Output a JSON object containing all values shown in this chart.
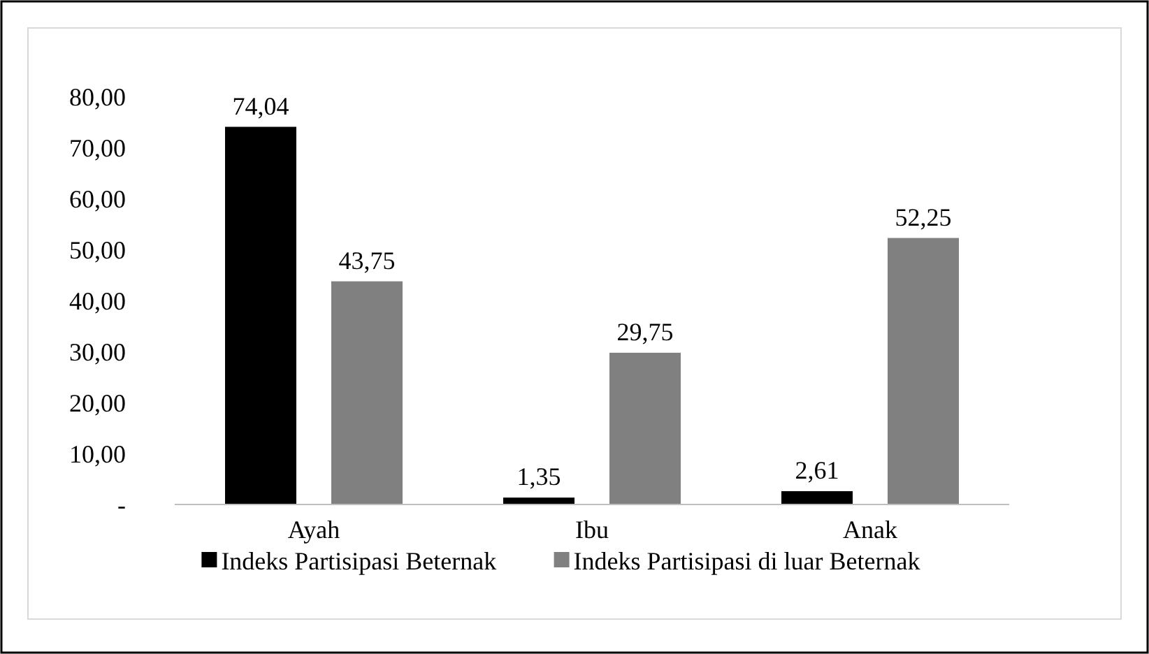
{
  "chart_data": {
    "type": "bar",
    "categories": [
      "Ayah",
      "Ibu",
      "Anak"
    ],
    "series": [
      {
        "name": "Indeks Partisipasi Beternak",
        "color": "#000000",
        "values": [
          74.04,
          1.35,
          2.61
        ],
        "value_labels": [
          "74,04",
          "1,35",
          "2,61"
        ]
      },
      {
        "name": "Indeks Partisipasi di luar Beternak",
        "color": "#808080",
        "values": [
          43.75,
          29.75,
          52.25
        ],
        "value_labels": [
          "43,75",
          "29,75",
          "52,25"
        ]
      }
    ],
    "ylim": [
      0,
      80
    ],
    "yticks": [
      {
        "value": 0,
        "label": "-"
      },
      {
        "value": 10,
        "label": "10,00"
      },
      {
        "value": 20,
        "label": "20,00"
      },
      {
        "value": 30,
        "label": "30,00"
      },
      {
        "value": 40,
        "label": "40,00"
      },
      {
        "value": 50,
        "label": "50,00"
      },
      {
        "value": 60,
        "label": "60,00"
      },
      {
        "value": 70,
        "label": "70,00"
      },
      {
        "value": 80,
        "label": "80,00"
      }
    ],
    "grid": false,
    "legend": "bottom"
  }
}
